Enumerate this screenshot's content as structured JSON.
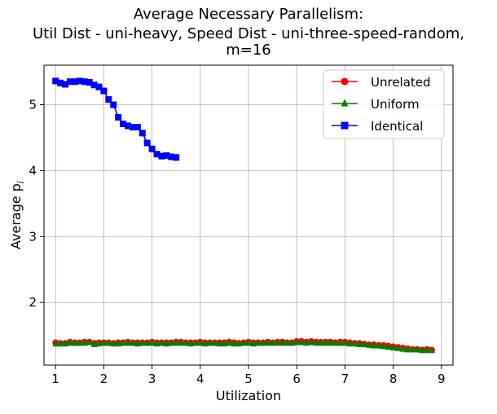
{
  "title_lines": [
    "Average Necessary Parallelism:",
    "Util Dist - uni-heavy, Speed Dist - uni-three-speed-random,",
    "m=16"
  ],
  "chart_data": {
    "type": "line",
    "title": "Average Necessary Parallelism: Util Dist - uni-heavy, Speed Dist - uni-three-speed-random, m=16",
    "xlabel": "Utilization",
    "ylabel": "Average p",
    "ylabel_sub": "i",
    "xlim": [
      0.76,
      9.24
    ],
    "ylim": [
      1.05,
      5.6
    ],
    "xticks": [
      1,
      2,
      3,
      4,
      5,
      6,
      7,
      8,
      9
    ],
    "yticks": [
      2,
      3,
      4,
      5
    ],
    "grid": true,
    "legend_position": "top-right",
    "series": [
      {
        "name": "Unrelated",
        "color": "#ff0000",
        "marker": "circle",
        "x": [
          1.0,
          1.1,
          1.2,
          1.3,
          1.4,
          1.5,
          1.6,
          1.7,
          1.8,
          1.9,
          2.0,
          2.1,
          2.2,
          2.3,
          2.4,
          2.5,
          2.6,
          2.7,
          2.8,
          2.9,
          3.0,
          3.1,
          3.2,
          3.3,
          3.4,
          3.5,
          3.6,
          3.7,
          3.8,
          3.9,
          4.0,
          4.1,
          4.2,
          4.3,
          4.4,
          4.5,
          4.6,
          4.7,
          4.8,
          4.9,
          5.0,
          5.1,
          5.2,
          5.3,
          5.4,
          5.5,
          5.6,
          5.7,
          5.8,
          5.9,
          6.0,
          6.1,
          6.2,
          6.3,
          6.4,
          6.5,
          6.6,
          6.7,
          6.8,
          6.9,
          7.0,
          7.1,
          7.2,
          7.3,
          7.4,
          7.5,
          7.6,
          7.7,
          7.8,
          7.9,
          8.0,
          8.1,
          8.2,
          8.3,
          8.4,
          8.5,
          8.6,
          8.7,
          8.8
        ],
        "y": [
          1.39,
          1.38,
          1.38,
          1.4,
          1.39,
          1.39,
          1.4,
          1.4,
          1.38,
          1.39,
          1.39,
          1.39,
          1.38,
          1.39,
          1.39,
          1.4,
          1.39,
          1.39,
          1.39,
          1.39,
          1.4,
          1.39,
          1.39,
          1.39,
          1.39,
          1.4,
          1.4,
          1.39,
          1.39,
          1.39,
          1.4,
          1.39,
          1.39,
          1.39,
          1.39,
          1.39,
          1.4,
          1.39,
          1.38,
          1.39,
          1.4,
          1.39,
          1.39,
          1.39,
          1.4,
          1.39,
          1.4,
          1.4,
          1.39,
          1.39,
          1.41,
          1.41,
          1.4,
          1.41,
          1.4,
          1.4,
          1.4,
          1.4,
          1.39,
          1.4,
          1.4,
          1.39,
          1.38,
          1.38,
          1.37,
          1.36,
          1.36,
          1.35,
          1.35,
          1.34,
          1.33,
          1.32,
          1.31,
          1.3,
          1.29,
          1.29,
          1.28,
          1.29,
          1.28
        ]
      },
      {
        "name": "Uniform",
        "color": "#008000",
        "marker": "triangle",
        "x": [
          1.0,
          1.1,
          1.2,
          1.3,
          1.4,
          1.5,
          1.6,
          1.7,
          1.8,
          1.9,
          2.0,
          2.1,
          2.2,
          2.3,
          2.4,
          2.5,
          2.6,
          2.7,
          2.8,
          2.9,
          3.0,
          3.1,
          3.2,
          3.3,
          3.4,
          3.5,
          3.6,
          3.7,
          3.8,
          3.9,
          4.0,
          4.1,
          4.2,
          4.3,
          4.4,
          4.5,
          4.6,
          4.7,
          4.8,
          4.9,
          5.0,
          5.1,
          5.2,
          5.3,
          5.4,
          5.5,
          5.6,
          5.7,
          5.8,
          5.9,
          6.0,
          6.1,
          6.2,
          6.3,
          6.4,
          6.5,
          6.6,
          6.7,
          6.8,
          6.9,
          7.0,
          7.1,
          7.2,
          7.3,
          7.4,
          7.5,
          7.6,
          7.7,
          7.8,
          7.9,
          8.0,
          8.1,
          8.2,
          8.3,
          8.4,
          8.5,
          8.6,
          8.7,
          8.8
        ],
        "y": [
          1.37,
          1.37,
          1.37,
          1.38,
          1.38,
          1.38,
          1.38,
          1.39,
          1.36,
          1.37,
          1.38,
          1.38,
          1.37,
          1.37,
          1.38,
          1.38,
          1.38,
          1.37,
          1.38,
          1.38,
          1.38,
          1.37,
          1.38,
          1.37,
          1.38,
          1.38,
          1.38,
          1.38,
          1.37,
          1.38,
          1.38,
          1.37,
          1.38,
          1.38,
          1.37,
          1.37,
          1.38,
          1.37,
          1.37,
          1.38,
          1.38,
          1.37,
          1.38,
          1.38,
          1.38,
          1.38,
          1.38,
          1.38,
          1.38,
          1.38,
          1.39,
          1.39,
          1.38,
          1.39,
          1.38,
          1.38,
          1.38,
          1.38,
          1.38,
          1.38,
          1.38,
          1.37,
          1.37,
          1.36,
          1.36,
          1.35,
          1.34,
          1.34,
          1.33,
          1.32,
          1.31,
          1.3,
          1.29,
          1.28,
          1.28,
          1.28,
          1.27,
          1.27,
          1.27
        ]
      },
      {
        "name": "Identical",
        "color": "#0000ff",
        "marker": "square",
        "x": [
          1.0,
          1.1,
          1.2,
          1.3,
          1.4,
          1.5,
          1.6,
          1.7,
          1.8,
          1.9,
          2.0,
          2.1,
          2.2,
          2.3,
          2.4,
          2.5,
          2.6,
          2.7,
          2.8,
          2.9,
          3.0,
          3.1,
          3.2,
          3.3,
          3.4,
          3.5
        ],
        "y": [
          5.36,
          5.33,
          5.31,
          5.35,
          5.35,
          5.36,
          5.35,
          5.34,
          5.3,
          5.27,
          5.21,
          5.08,
          5.0,
          4.81,
          4.71,
          4.68,
          4.66,
          4.66,
          4.57,
          4.42,
          4.33,
          4.25,
          4.22,
          4.23,
          4.21,
          4.2
        ]
      }
    ]
  }
}
